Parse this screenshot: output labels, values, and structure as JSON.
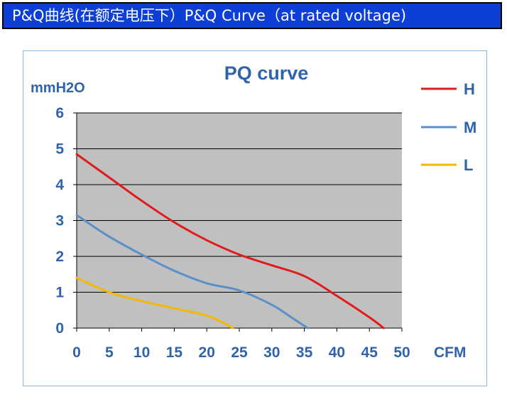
{
  "banner": {
    "title": "P&Q曲线(在额定电压下）P&Q Curve（at rated voltage)"
  },
  "chart_data": {
    "type": "line",
    "title": "PQ curve",
    "xlabel": "CFM",
    "ylabel": "mmH2O",
    "xlim": [
      0,
      50
    ],
    "ylim": [
      0,
      6
    ],
    "x_ticks": [
      0,
      5,
      10,
      15,
      20,
      25,
      30,
      35,
      40,
      45,
      50
    ],
    "y_ticks": [
      0,
      1,
      2,
      3,
      4,
      5,
      6
    ],
    "grid": true,
    "legend_position": "right",
    "plot_background": "#c0c0c0",
    "text_color": "#2f64ab",
    "series": [
      {
        "name": "H",
        "color": "#e11b1b",
        "points": [
          [
            0,
            4.85
          ],
          [
            5,
            4.2
          ],
          [
            10,
            3.55
          ],
          [
            15,
            2.95
          ],
          [
            20,
            2.45
          ],
          [
            25,
            2.05
          ],
          [
            30,
            1.75
          ],
          [
            35,
            1.45
          ],
          [
            40,
            0.9
          ],
          [
            45,
            0.3
          ],
          [
            47.2,
            0
          ]
        ]
      },
      {
        "name": "M",
        "color": "#5b8fc9",
        "points": [
          [
            0,
            3.15
          ],
          [
            5,
            2.55
          ],
          [
            10,
            2.05
          ],
          [
            15,
            1.6
          ],
          [
            20,
            1.25
          ],
          [
            25,
            1.05
          ],
          [
            30,
            0.65
          ],
          [
            33,
            0.3
          ],
          [
            35.5,
            0
          ]
        ]
      },
      {
        "name": "L",
        "color": "#f3b800",
        "points": [
          [
            0,
            1.4
          ],
          [
            5,
            1.0
          ],
          [
            10,
            0.75
          ],
          [
            15,
            0.55
          ],
          [
            20,
            0.35
          ],
          [
            22.5,
            0.15
          ],
          [
            24,
            0
          ]
        ]
      }
    ]
  }
}
